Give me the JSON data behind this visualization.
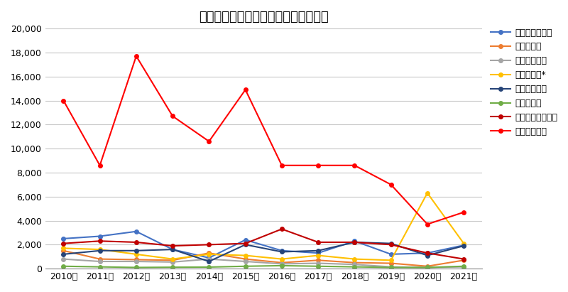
{
  "title": "病因物質別食中毒発生状況（患者数）",
  "years": [
    2010,
    2011,
    2012,
    2013,
    2014,
    2015,
    2016,
    2017,
    2018,
    2019,
    2020,
    2021
  ],
  "series": {
    "サルモネラ属菌": {
      "color": "#4472C4",
      "marker": "o",
      "values": [
        2500,
        2700,
        3100,
        1600,
        900,
        2400,
        1500,
        1300,
        2300,
        1200,
        1300,
        1950
      ]
    },
    "ぶどう球菌": {
      "color": "#ED7D31",
      "marker": "o",
      "values": [
        1500,
        800,
        750,
        700,
        1300,
        800,
        500,
        700,
        500,
        450,
        200,
        700
      ]
    },
    "腸炎ビブリオ": {
      "color": "#A5A5A5",
      "marker": "o",
      "values": [
        800,
        600,
        600,
        550,
        800,
        600,
        400,
        450,
        350,
        150,
        100,
        150
      ]
    },
    "病原大腸菌*": {
      "color": "#FFC000",
      "marker": "o",
      "values": [
        1700,
        1600,
        1200,
        800,
        1200,
        1100,
        800,
        1100,
        800,
        700,
        6300,
        2100
      ]
    },
    "ウエルシュ菌": {
      "color": "#264478",
      "marker": "o",
      "values": [
        1200,
        1500,
        1500,
        1600,
        600,
        2000,
        1400,
        1500,
        2200,
        2100,
        1100,
        1900
      ]
    },
    "セレウス菌": {
      "color": "#70AD47",
      "marker": "o",
      "values": [
        200,
        150,
        100,
        120,
        130,
        200,
        250,
        200,
        150,
        100,
        100,
        200
      ]
    },
    "カンピロバクター": {
      "color": "#C00000",
      "marker": "o",
      "values": [
        2100,
        2300,
        2200,
        1900,
        2000,
        2100,
        3300,
        2200,
        2200,
        2000,
        1300,
        800
      ]
    },
    "ノロウイルス": {
      "color": "#FF0000",
      "marker": "o",
      "values": [
        14000,
        8600,
        17700,
        12700,
        10600,
        14900,
        8600,
        8600,
        8600,
        7000,
        3700,
        4700
      ]
    }
  },
  "ylim": [
    0,
    20000
  ],
  "yticks": [
    0,
    2000,
    4000,
    6000,
    8000,
    10000,
    12000,
    14000,
    16000,
    18000,
    20000
  ],
  "background_color": "#FFFFFF",
  "plot_bg_color": "#FFFFFF",
  "grid_color": "#C8C8C8",
  "title_fontsize": 13,
  "tick_fontsize": 9,
  "legend_fontsize": 9
}
